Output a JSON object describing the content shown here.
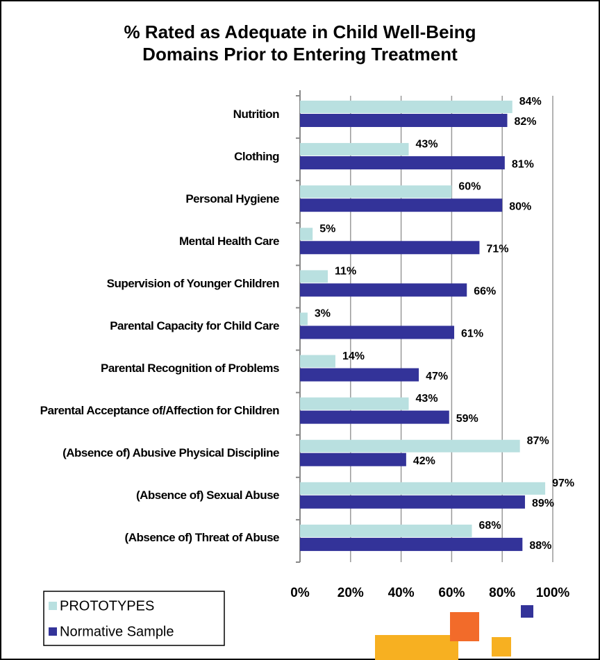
{
  "chart_data": {
    "type": "bar",
    "orientation": "horizontal",
    "title": "% Rated as Adequate in Child Well-Being Domains Prior to Entering Treatment",
    "categories": [
      "Nutrition",
      "Clothing",
      "Personal Hygiene",
      "Mental Health Care",
      "Supervision of Younger Children",
      "Parental Capacity for Child Care",
      "Parental Recognition of Problems",
      "Parental Acceptance of/Affection for Children",
      "(Absence of) Abusive Physical Discipline",
      "(Absence of) Sexual Abuse",
      "(Absence of) Threat of Abuse"
    ],
    "series": [
      {
        "name": "PROTOTYPES",
        "color": "#b9e0e0",
        "values": [
          84,
          43,
          60,
          5,
          11,
          3,
          14,
          43,
          87,
          97,
          68
        ],
        "value_labels": [
          "84%",
          "43%",
          "60%",
          "5%",
          "11%",
          "3%",
          "14%",
          "43%",
          "87%",
          "97%",
          "68%"
        ]
      },
      {
        "name": "Normative Sample",
        "color": "#333399",
        "values": [
          82,
          81,
          80,
          71,
          66,
          61,
          47,
          59,
          42,
          89,
          88
        ],
        "value_labels": [
          "82%",
          "81%",
          "80%",
          "71%",
          "66%",
          "61%",
          "47%",
          "59%",
          "42%",
          "89%",
          "88%"
        ]
      }
    ],
    "xlim": [
      0,
      100
    ],
    "xticks": [
      {
        "value": 0,
        "label": "0%"
      },
      {
        "value": 20,
        "label": "20%"
      },
      {
        "value": 40,
        "label": "40%"
      },
      {
        "value": 60,
        "label": "60%"
      },
      {
        "value": 80,
        "label": "80%"
      },
      {
        "value": 100,
        "label": "100%"
      }
    ],
    "grid": true,
    "legend": "bottom-left"
  }
}
